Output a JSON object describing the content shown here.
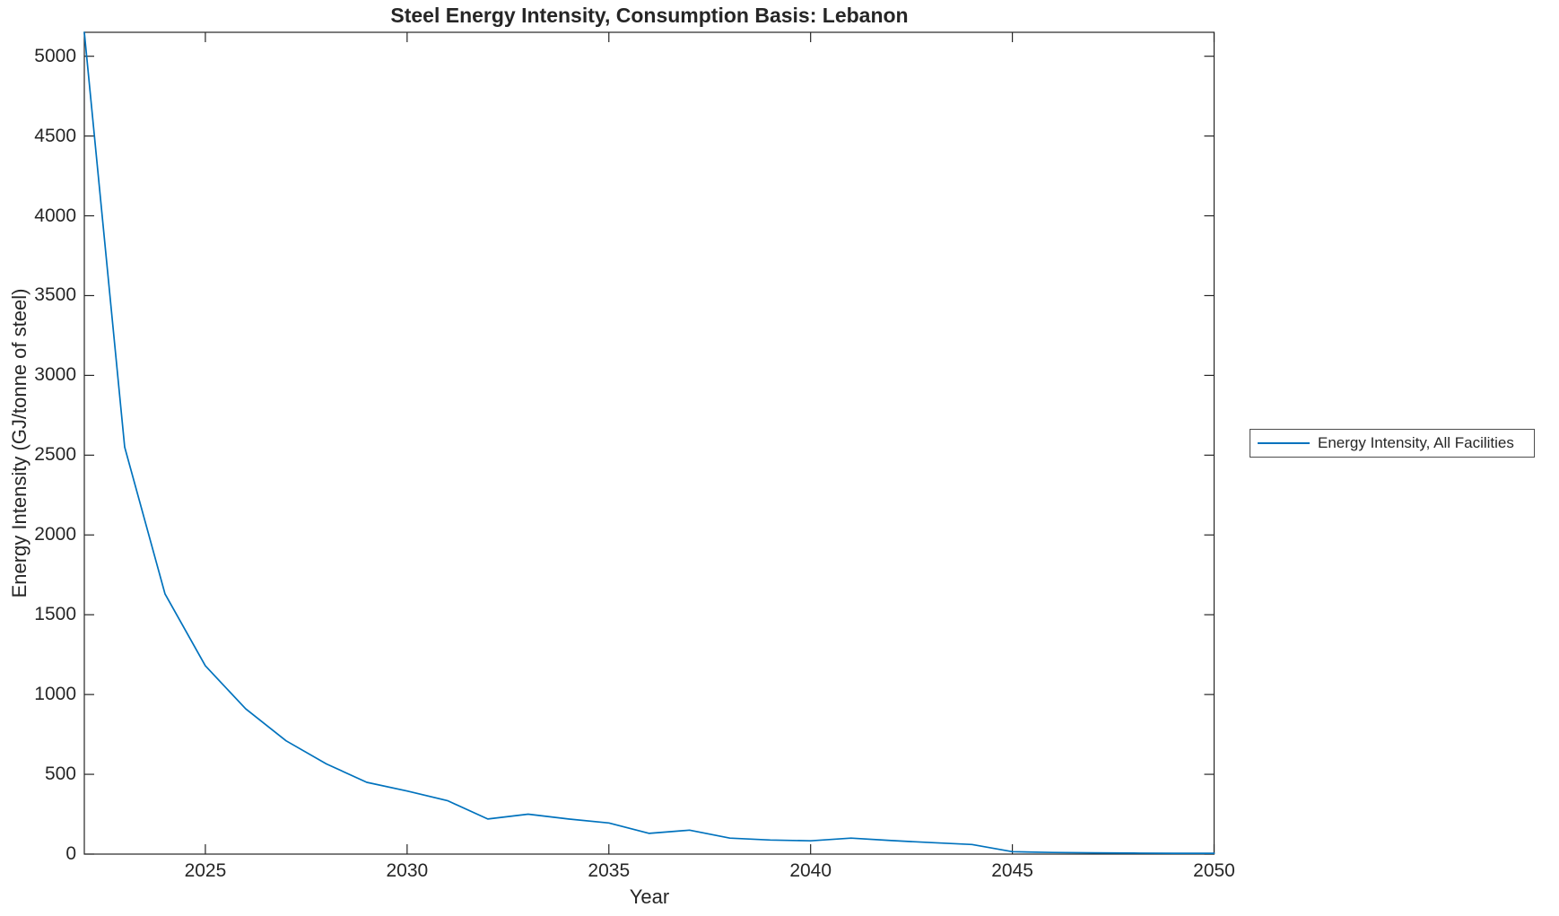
{
  "chart_data": {
    "type": "line",
    "title": "Steel Energy Intensity, Consumption Basis: Lebanon",
    "xlabel": "Year",
    "ylabel": "Energy Intensity (GJ/tonne of steel)",
    "xlim": [
      2022,
      2050
    ],
    "ylim": [
      0,
      5150
    ],
    "xticks": [
      2025,
      2030,
      2035,
      2040,
      2045,
      2050
    ],
    "yticks": [
      0,
      500,
      1000,
      1500,
      2000,
      2500,
      3000,
      3500,
      4000,
      4500,
      5000
    ],
    "grid": false,
    "plot_background": "#ffffff",
    "axis_color": "#262626",
    "legend": {
      "position": "right-outside",
      "entries": [
        "Energy Intensity, All Facilities"
      ]
    },
    "series": [
      {
        "name": "Energy Intensity, All Facilities",
        "color": "#0072BD",
        "x": [
          2022,
          2023,
          2024,
          2025,
          2026,
          2027,
          2028,
          2029,
          2030,
          2031,
          2032,
          2033,
          2034,
          2035,
          2036,
          2037,
          2038,
          2039,
          2040,
          2041,
          2042,
          2043,
          2044,
          2045,
          2046,
          2047,
          2048,
          2049,
          2050
        ],
        "y": [
          5150,
          2550,
          1630,
          1180,
          910,
          710,
          565,
          450,
          395,
          335,
          220,
          250,
          220,
          195,
          130,
          150,
          100,
          88,
          83,
          100,
          85,
          72,
          60,
          15,
          10,
          8,
          6,
          5,
          5
        ]
      }
    ]
  }
}
